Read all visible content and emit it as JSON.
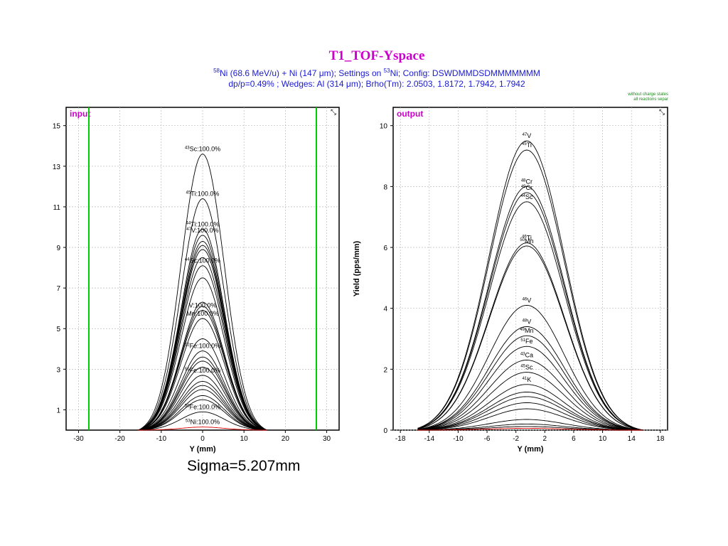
{
  "header": {
    "title": "T1_TOF-Yspace",
    "line1": {
      "sup1": "58",
      "text1": "Ni (68.6 MeV/u) + Ni (147 μm);  Settings on ",
      "sup2": "53",
      "text2": "Ni;  Config: DSWDMMDSDMMMMMMM"
    },
    "line2": "dp/p=0.49% ; Wedges: Al (314 μm); Brho(Tm): 2.0503, 1.8172, 1.7942, 1.7942"
  },
  "note": {
    "line1": "without charge states",
    "line2": "all reactions separ"
  },
  "sigma_text": "Sigma=5.207mm",
  "colors": {
    "title": "#cc00cc",
    "subtitle": "#1a1ad0",
    "slits": "#00cc00",
    "curve": "#000000",
    "ni53": "#dd0000",
    "grid": "#bbbbbb"
  },
  "chart_data": [
    {
      "type": "line",
      "panel": "input",
      "xlabel": "Y (mm)",
      "ylabel": "",
      "xlim": [
        -33,
        33
      ],
      "ylim": [
        0,
        15.9
      ],
      "xticks": [
        -30,
        -20,
        -10,
        0,
        10,
        20,
        30
      ],
      "yticks": [
        1,
        3,
        5,
        7,
        9,
        11,
        13,
        15
      ],
      "slit_positions": [
        -27.5,
        27.5
      ],
      "sigma": 5.207,
      "x_range": [
        -15.6,
        15.6
      ],
      "grid": true,
      "series": [
        {
          "nuclide": "43Sc",
          "label_mass": "43",
          "label_el": "Sc",
          "label_pct": "100.0%",
          "peak": 13.6
        },
        {
          "nuclide": "45Ti",
          "label_mass": "45",
          "label_el": "Ti",
          "label_pct": "100.0%",
          "peak": 11.4
        },
        {
          "nuclide": "44Ti",
          "label_mass": "44",
          "label_el": "Ti",
          "label_pct": "100.0%",
          "peak": 9.9
        },
        {
          "nuclide": "47V",
          "label_mass": "47",
          "label_el": "V",
          "label_pct": "100.0%",
          "peak": 9.6
        },
        {
          "nuclide": "",
          "label_mass": "",
          "label_el": "",
          "label_pct": "",
          "peak": 9.3
        },
        {
          "nuclide": "",
          "label_mass": "",
          "label_el": "",
          "label_pct": "",
          "peak": 9.1
        },
        {
          "nuclide": "",
          "label_mass": "",
          "label_el": "",
          "label_pct": "",
          "peak": 8.9
        },
        {
          "nuclide": "",
          "label_mass": "",
          "label_el": "",
          "label_pct": "",
          "peak": 8.5
        },
        {
          "nuclide": "44Sc",
          "label_mass": "44",
          "label_el": "Sc",
          "label_pct": "100.0%",
          "peak": 8.1
        },
        {
          "nuclide": "",
          "label_mass": "",
          "label_el": "",
          "label_pct": "",
          "peak": 7.5
        },
        {
          "nuclide": "",
          "label_mass": "",
          "label_el": "",
          "label_pct": "",
          "peak": 6.3
        },
        {
          "nuclide": "",
          "label_mass": "",
          "label_el": "",
          "label_pct": "",
          "peak": 6.1
        },
        {
          "nuclide": "V",
          "label_mass": "",
          "label_el": "V",
          "label_pct": "100.0%",
          "peak": 5.9
        },
        {
          "nuclide": "Mn",
          "label_mass": "",
          "label_el": "Mn",
          "label_pct": "100.0%",
          "peak": 5.5
        },
        {
          "nuclide": "",
          "label_mass": "",
          "label_el": "",
          "label_pct": "",
          "peak": 4.5
        },
        {
          "nuclide": "52Fe",
          "label_mass": "52",
          "label_el": "Fe",
          "label_pct": "100.0%",
          "peak": 3.9
        },
        {
          "nuclide": "",
          "label_mass": "",
          "label_el": "",
          "label_pct": "",
          "peak": 3.6
        },
        {
          "nuclide": "",
          "label_mass": "",
          "label_el": "",
          "label_pct": "",
          "peak": 3.4
        },
        {
          "nuclide": "",
          "label_mass": "",
          "label_el": "",
          "label_pct": "",
          "peak": 3.1
        },
        {
          "nuclide": "51Fe",
          "label_mass": "51",
          "label_el": "Fe",
          "label_pct": "100.0%",
          "peak": 2.7
        },
        {
          "nuclide": "",
          "label_mass": "",
          "label_el": "",
          "label_pct": "",
          "peak": 2.4
        },
        {
          "nuclide": "",
          "label_mass": "",
          "label_el": "",
          "label_pct": "",
          "peak": 2.2
        },
        {
          "nuclide": "",
          "label_mass": "",
          "label_el": "",
          "label_pct": "",
          "peak": 2.0
        },
        {
          "nuclide": "",
          "label_mass": "",
          "label_el": "",
          "label_pct": "",
          "peak": 1.7
        },
        {
          "nuclide": "",
          "label_mass": "",
          "label_el": "",
          "label_pct": "",
          "peak": 1.5
        },
        {
          "nuclide": "50Fe",
          "label_mass": "50",
          "label_el": "Fe",
          "label_pct": "100.0%",
          "peak": 0.9
        },
        {
          "nuclide": "53Ni",
          "label_mass": "53",
          "label_el": "Ni",
          "label_pct": "100.0%",
          "peak": 0.15,
          "color": "#dd0000"
        }
      ]
    },
    {
      "type": "line",
      "panel": "output",
      "xlabel": "Y (mm)",
      "ylabel": "Yield (pps/mm)",
      "xlim": [
        -19,
        19
      ],
      "ylim": [
        0,
        10.6
      ],
      "xticks": [
        -18,
        -14,
        -10,
        -6,
        -2,
        2,
        6,
        10,
        14,
        18
      ],
      "xtick_labels": [
        "-18",
        "-14",
        "-10",
        "-6",
        "-2",
        "2",
        "6",
        "10",
        "14",
        "18"
      ],
      "yticks": [
        0,
        2,
        4,
        6,
        8,
        10
      ],
      "center": -0.5,
      "sigma": 5.2,
      "x_range": [
        -15.6,
        15.6
      ],
      "grid": true,
      "series": [
        {
          "nuclide": "47V",
          "label_mass": "47",
          "label_el": "V",
          "peak": 9.5
        },
        {
          "nuclide": "45Ti",
          "label_mass": "45",
          "label_el": "Ti",
          "peak": 9.2
        },
        {
          "nuclide": "48Cr",
          "label_mass": "48",
          "label_el": "Cr",
          "peak": 8.0
        },
        {
          "nuclide": "49Cr",
          "label_mass": "49",
          "label_el": "Cr",
          "peak": 7.8
        },
        {
          "nuclide": "44Sc",
          "label_mass": "44",
          "label_el": "Sc",
          "peak": 7.5
        },
        {
          "nuclide": "46Ti",
          "label_mass": "46",
          "label_el": "Ti",
          "peak": 6.15
        },
        {
          "nuclide": "50Mn",
          "label_mass": "50",
          "label_el": "Mn",
          "peak": 6.05
        },
        {
          "nuclide": "46V",
          "label_mass": "46",
          "label_el": "V",
          "peak": 4.1
        },
        {
          "nuclide": "48V",
          "label_mass": "48",
          "label_el": "V",
          "peak": 3.4
        },
        {
          "nuclide": "49Mn",
          "label_mass": "49",
          "label_el": "Mn",
          "peak": 3.1
        },
        {
          "nuclide": "51Fe",
          "label_mass": "51",
          "label_el": "Fe",
          "peak": 2.75
        },
        {
          "nuclide": "43Ca",
          "label_mass": "43",
          "label_el": "Ca",
          "peak": 2.3
        },
        {
          "nuclide": "45Sc",
          "label_mass": "45",
          "label_el": "Sc",
          "peak": 1.9
        },
        {
          "nuclide": "41K",
          "label_mass": "41",
          "label_el": "K",
          "peak": 1.5
        },
        {
          "nuclide": "",
          "label_mass": "",
          "label_el": "",
          "peak": 1.25
        },
        {
          "nuclide": "",
          "label_mass": "",
          "label_el": "",
          "peak": 1.1
        },
        {
          "nuclide": "",
          "label_mass": "",
          "label_el": "",
          "peak": 0.9
        },
        {
          "nuclide": "",
          "label_mass": "",
          "label_el": "",
          "peak": 0.7
        },
        {
          "nuclide": "",
          "label_mass": "",
          "label_el": "",
          "peak": 0.35
        },
        {
          "nuclide": "",
          "label_mass": "",
          "label_el": "",
          "peak": 0.2
        },
        {
          "nuclide": "",
          "label_mass": "",
          "label_el": "",
          "peak": 0.12
        },
        {
          "nuclide": "",
          "label_mass": "",
          "label_el": "",
          "peak": 0.06,
          "color": "#dd0000"
        }
      ]
    }
  ]
}
